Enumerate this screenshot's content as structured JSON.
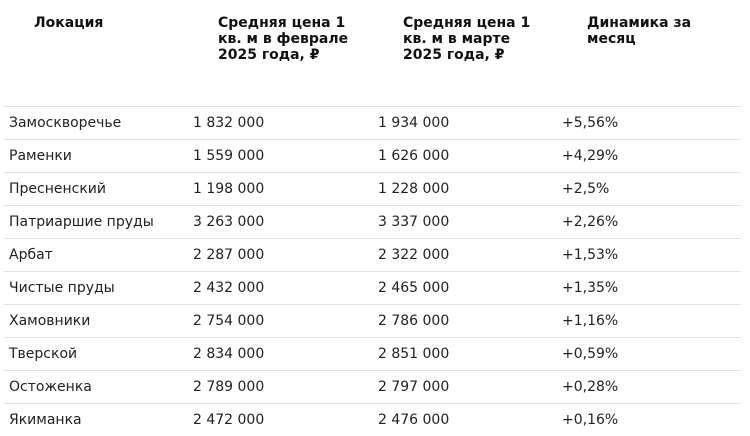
{
  "table": {
    "headers": [
      "Локация",
      "Средняя цена 1 кв. м в феврале 2025 года, ₽",
      "Средняя цена 1 кв. м в марте 2025 года, ₽",
      "Динамика за месяц"
    ],
    "rows": [
      [
        "Замоскворечье",
        "1 832 000",
        "1 934 000",
        "+5,56%"
      ],
      [
        "Раменки",
        "1 559 000",
        "1 626 000",
        "+4,29%"
      ],
      [
        "Пресненский",
        "1 198 000",
        "1 228 000",
        "+2,5%"
      ],
      [
        "Патриаршие пруды",
        "3 263 000",
        "3 337 000",
        "+2,26%"
      ],
      [
        "Арбат",
        "2 287 000",
        "2 322 000",
        "+1,53%"
      ],
      [
        "Чистые пруды",
        "2 432 000",
        "2 465 000",
        "+1,35%"
      ],
      [
        "Хамовники",
        "2 754 000",
        "2 786 000",
        "+1,16%"
      ],
      [
        "Тверской",
        "2 834 000",
        "2 851 000",
        "+0,59%"
      ],
      [
        "Остоженка",
        "2 789 000",
        "2 797 000",
        "+0,28%"
      ],
      [
        "Якиманка",
        "2 472 000",
        "2 476 000",
        "+0,16%"
      ]
    ]
  }
}
